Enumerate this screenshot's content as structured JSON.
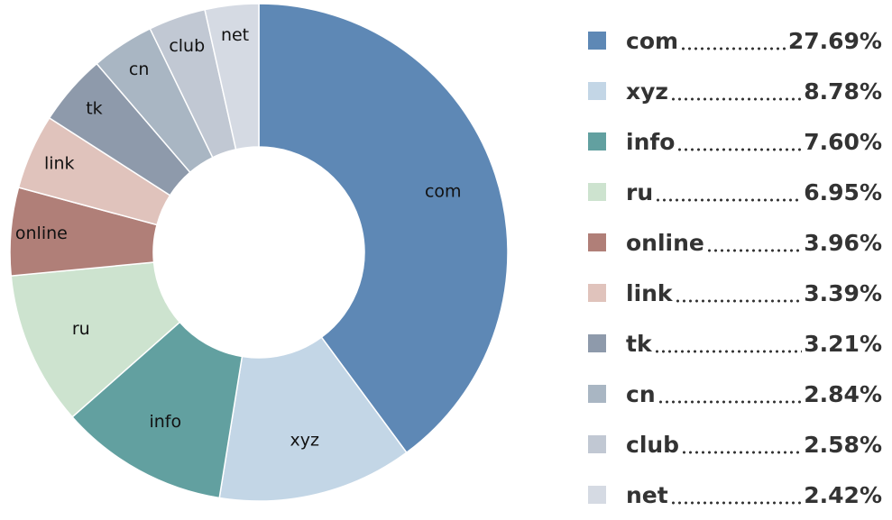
{
  "chart_data": {
    "type": "donut",
    "categories": [
      "com",
      "xyz",
      "info",
      "ru",
      "online",
      "link",
      "tk",
      "cn",
      "club",
      "net"
    ],
    "values": [
      27.69,
      8.78,
      7.6,
      6.95,
      3.96,
      3.39,
      3.21,
      2.84,
      2.58,
      2.42
    ],
    "value_labels": [
      "27.69%",
      "8.78%",
      "7.60%",
      "6.95%",
      "3.96%",
      "3.39%",
      "3.21%",
      "2.84%",
      "2.58%",
      "2.42%"
    ],
    "colors": [
      "#5e88b5",
      "#c3d6e6",
      "#62a0a0",
      "#cde3cf",
      "#b07f78",
      "#e0c3bc",
      "#8e9aab",
      "#a9b6c3",
      "#c1c8d3",
      "#d5dae3"
    ],
    "legend": "right"
  }
}
